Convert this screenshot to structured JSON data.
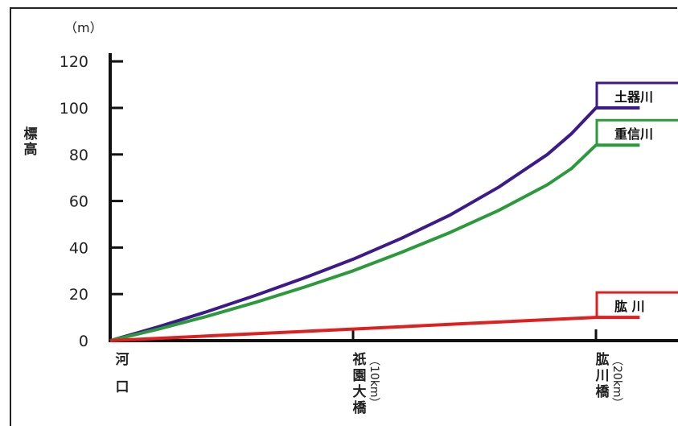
{
  "chart_data": {
    "type": "line",
    "title": "",
    "ylabel": "標高",
    "yunit": "（m）",
    "ylim": [
      0,
      120
    ],
    "yticks": [
      "0",
      "20",
      "40",
      "60",
      "80",
      "100",
      "120"
    ],
    "xlabels": [
      {
        "chars": [
          "河",
          "口"
        ]
      },
      {
        "chars": [
          "祇",
          "園",
          "大",
          "橋"
        ],
        "note": "（10km）"
      },
      {
        "chars": [
          "肱",
          "川",
          "橋"
        ],
        "note": "（20km）"
      }
    ],
    "x_unit": "km",
    "series": [
      {
        "name": "土器川",
        "color": "#3d1a8c",
        "points": [
          [
            0,
            0
          ],
          [
            2,
            6
          ],
          [
            4,
            12.5
          ],
          [
            6,
            19.5
          ],
          [
            8,
            27
          ],
          [
            10,
            35
          ],
          [
            12,
            44
          ],
          [
            14,
            54
          ],
          [
            16,
            66
          ],
          [
            18,
            80
          ],
          [
            19,
            89
          ],
          [
            20,
            100
          ],
          [
            21,
            100
          ],
          [
            21.8,
            100
          ]
        ]
      },
      {
        "name": "重信川",
        "color": "#2a9a3a",
        "points": [
          [
            0,
            0
          ],
          [
            2,
            5
          ],
          [
            4,
            10.5
          ],
          [
            6,
            16.5
          ],
          [
            8,
            23
          ],
          [
            10,
            30
          ],
          [
            12,
            38
          ],
          [
            14,
            46.5
          ],
          [
            16,
            56
          ],
          [
            18,
            67
          ],
          [
            19,
            74
          ],
          [
            20,
            84
          ],
          [
            21,
            84
          ],
          [
            21.8,
            84
          ]
        ]
      },
      {
        "name": "肱 川",
        "color": "#e02020",
        "points": [
          [
            0,
            0
          ],
          [
            5,
            2.5
          ],
          [
            10,
            5
          ],
          [
            15,
            7.5
          ],
          [
            20,
            10
          ],
          [
            21,
            10
          ],
          [
            21.8,
            10
          ]
        ]
      }
    ]
  }
}
